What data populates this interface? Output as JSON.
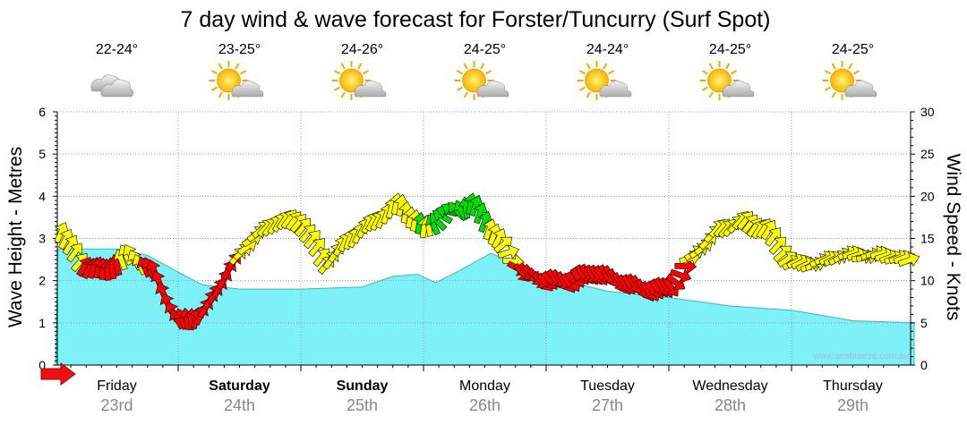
{
  "chart_data": {
    "type": "area",
    "title": "7 day wind & wave forecast for Forster/Tuncurry (Surf Spot)",
    "ylabel_left": "Wave Height - Metres",
    "ylabel_right": "Wind Speed - Knots",
    "ylim_left": [
      0,
      6
    ],
    "ylim_right": [
      0,
      30
    ],
    "yticks_left": [
      "0",
      "1",
      "2",
      "3",
      "4",
      "5",
      "6"
    ],
    "yticks_right": [
      "0",
      "5",
      "10",
      "15",
      "20",
      "25",
      "30"
    ],
    "watermark": "www.seabreeze.com.au",
    "days": [
      {
        "day": "Friday",
        "date": "23rd",
        "temp": "22-24°",
        "weather": "cloudy",
        "bold": false
      },
      {
        "day": "Saturday",
        "date": "24th",
        "temp": "23-25°",
        "weather": "partly-cloudy",
        "bold": true
      },
      {
        "day": "Sunday",
        "date": "25th",
        "temp": "24-26°",
        "weather": "partly-cloudy",
        "bold": true
      },
      {
        "day": "Monday",
        "date": "26th",
        "temp": "24-25°",
        "weather": "partly-cloudy",
        "bold": false
      },
      {
        "day": "Tuesday",
        "date": "27th",
        "temp": "24-24°",
        "weather": "partly-cloudy",
        "bold": false
      },
      {
        "day": "Wednesday",
        "date": "28th",
        "temp": "24-25°",
        "weather": "partly-cloudy",
        "bold": false
      },
      {
        "day": "Thursday",
        "date": "29th",
        "temp": "24-25°",
        "weather": "partly-cloudy",
        "bold": false
      }
    ],
    "wave_series": {
      "name": "Wave height (m)",
      "x_days": [
        0,
        0.02,
        0.05,
        0.5,
        0.75,
        1.0,
        1.2,
        1.5,
        2.0,
        2.5,
        2.75,
        2.95,
        3.1,
        3.3,
        3.55,
        4.0,
        4.5,
        5.0,
        5.5,
        6.0,
        6.5,
        7.0
      ],
      "values": [
        0,
        2.75,
        2.75,
        2.75,
        2.6,
        2.2,
        1.9,
        1.8,
        1.8,
        1.85,
        2.1,
        2.15,
        1.95,
        2.25,
        2.65,
        2.1,
        1.75,
        1.6,
        1.4,
        1.3,
        1.05,
        1.0
      ]
    },
    "wind_series": {
      "name": "Wind speed (knots)",
      "x_days": [
        0.0,
        0.2,
        0.4,
        0.6,
        0.8,
        1.0,
        1.2,
        1.4,
        1.6,
        1.8,
        2.0,
        2.2,
        2.4,
        2.6,
        2.8,
        3.0,
        3.2,
        3.4,
        3.6,
        3.8,
        4.0,
        4.2,
        4.4,
        4.6,
        4.8,
        5.0,
        5.2,
        5.4,
        5.6,
        5.8,
        6.0,
        6.2,
        6.4,
        6.6,
        6.8,
        7.0
      ],
      "values": [
        17,
        12,
        11,
        13,
        11,
        5,
        6,
        11,
        15,
        17,
        17,
        12,
        15,
        17,
        19,
        16,
        18,
        19,
        15,
        11,
        10,
        10,
        11,
        10,
        9,
        9,
        13,
        16,
        17,
        16,
        12,
        12,
        13,
        13,
        13,
        12
      ],
      "directions_deg": [
        200,
        220,
        180,
        150,
        160,
        150,
        210,
        210,
        240,
        210,
        220,
        220,
        200,
        210,
        190,
        190,
        100,
        200,
        200,
        320,
        320,
        330,
        330,
        330,
        330,
        330,
        240,
        220,
        220,
        210,
        240,
        250,
        240,
        260,
        250,
        250
      ],
      "color_bands": {
        "light_to_moderate": "#ffff00",
        "strong": "#ff0000",
        "offshore": "#00dd00"
      }
    }
  },
  "colors": {
    "wave_fill": "#7df0f8",
    "wave_line": "#3ab8c4",
    "arrow_outline": "#000000",
    "grid": "#999999"
  }
}
